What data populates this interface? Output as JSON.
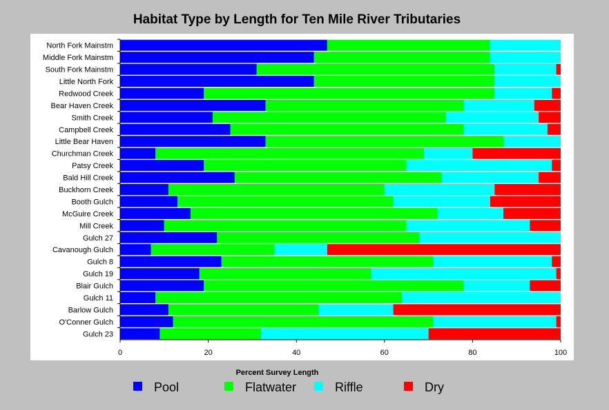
{
  "chart_data": {
    "type": "bar",
    "orientation": "horizontal",
    "stacked": true,
    "title": "Habitat Type by Length for Ten Mile River Tributaries",
    "xlabel": "Percent Survey Length",
    "ylabel": "",
    "xlim": [
      0,
      100
    ],
    "xticks": [
      0,
      20,
      40,
      60,
      80,
      100
    ],
    "grid": false,
    "legend_position": "bottom",
    "categories": [
      "North Fork Mainstm",
      "Middle Fork Mainstm",
      "South Fork Mainstm",
      "Little North Fork",
      "Redwood Creek",
      "Bear Haven Creek",
      "Smith Creek",
      "Campbell Creek",
      "Little Bear Haven",
      "Churchman Creek",
      "Patsy Creek",
      "Bald Hill Creek",
      "Buckhorn Creek",
      "Booth Gulch",
      "McGuire Creek",
      "Mill Creek",
      "Gulch 27",
      "Cavanough Gulch",
      "Gulch 8",
      "Gulch 19",
      "Blair Gulch",
      "Gulch 11",
      "Barlow Gulch",
      "O'Conner Gulch",
      "Gulch 23"
    ],
    "series": [
      {
        "name": "Pool",
        "color": "#0000ff",
        "values": [
          47,
          44,
          31,
          44,
          19,
          33,
          21,
          25,
          33,
          8,
          19,
          26,
          11,
          13,
          16,
          10,
          22,
          7,
          23,
          18,
          19,
          8,
          11,
          12,
          9
        ]
      },
      {
        "name": "Flatwater",
        "color": "#00ff00",
        "values": [
          37,
          40,
          54,
          41,
          66,
          45,
          53,
          53,
          54,
          61,
          46,
          47,
          49,
          49,
          56,
          55,
          46,
          28,
          48,
          39,
          59,
          56,
          34,
          59,
          23
        ]
      },
      {
        "name": "Riffle",
        "color": "#00ffff",
        "values": [
          16,
          16,
          14,
          15,
          13,
          16,
          21,
          19,
          13,
          11,
          33,
          22,
          25,
          22,
          15,
          28,
          32,
          12,
          27,
          42,
          15,
          36,
          17,
          28,
          38
        ]
      },
      {
        "name": "Dry",
        "color": "#ff0000",
        "values": [
          0,
          0,
          1,
          0,
          2,
          6,
          5,
          3,
          0,
          20,
          2,
          5,
          15,
          16,
          13,
          7,
          0,
          53,
          2,
          1,
          7,
          0,
          38,
          1,
          30
        ]
      }
    ]
  }
}
